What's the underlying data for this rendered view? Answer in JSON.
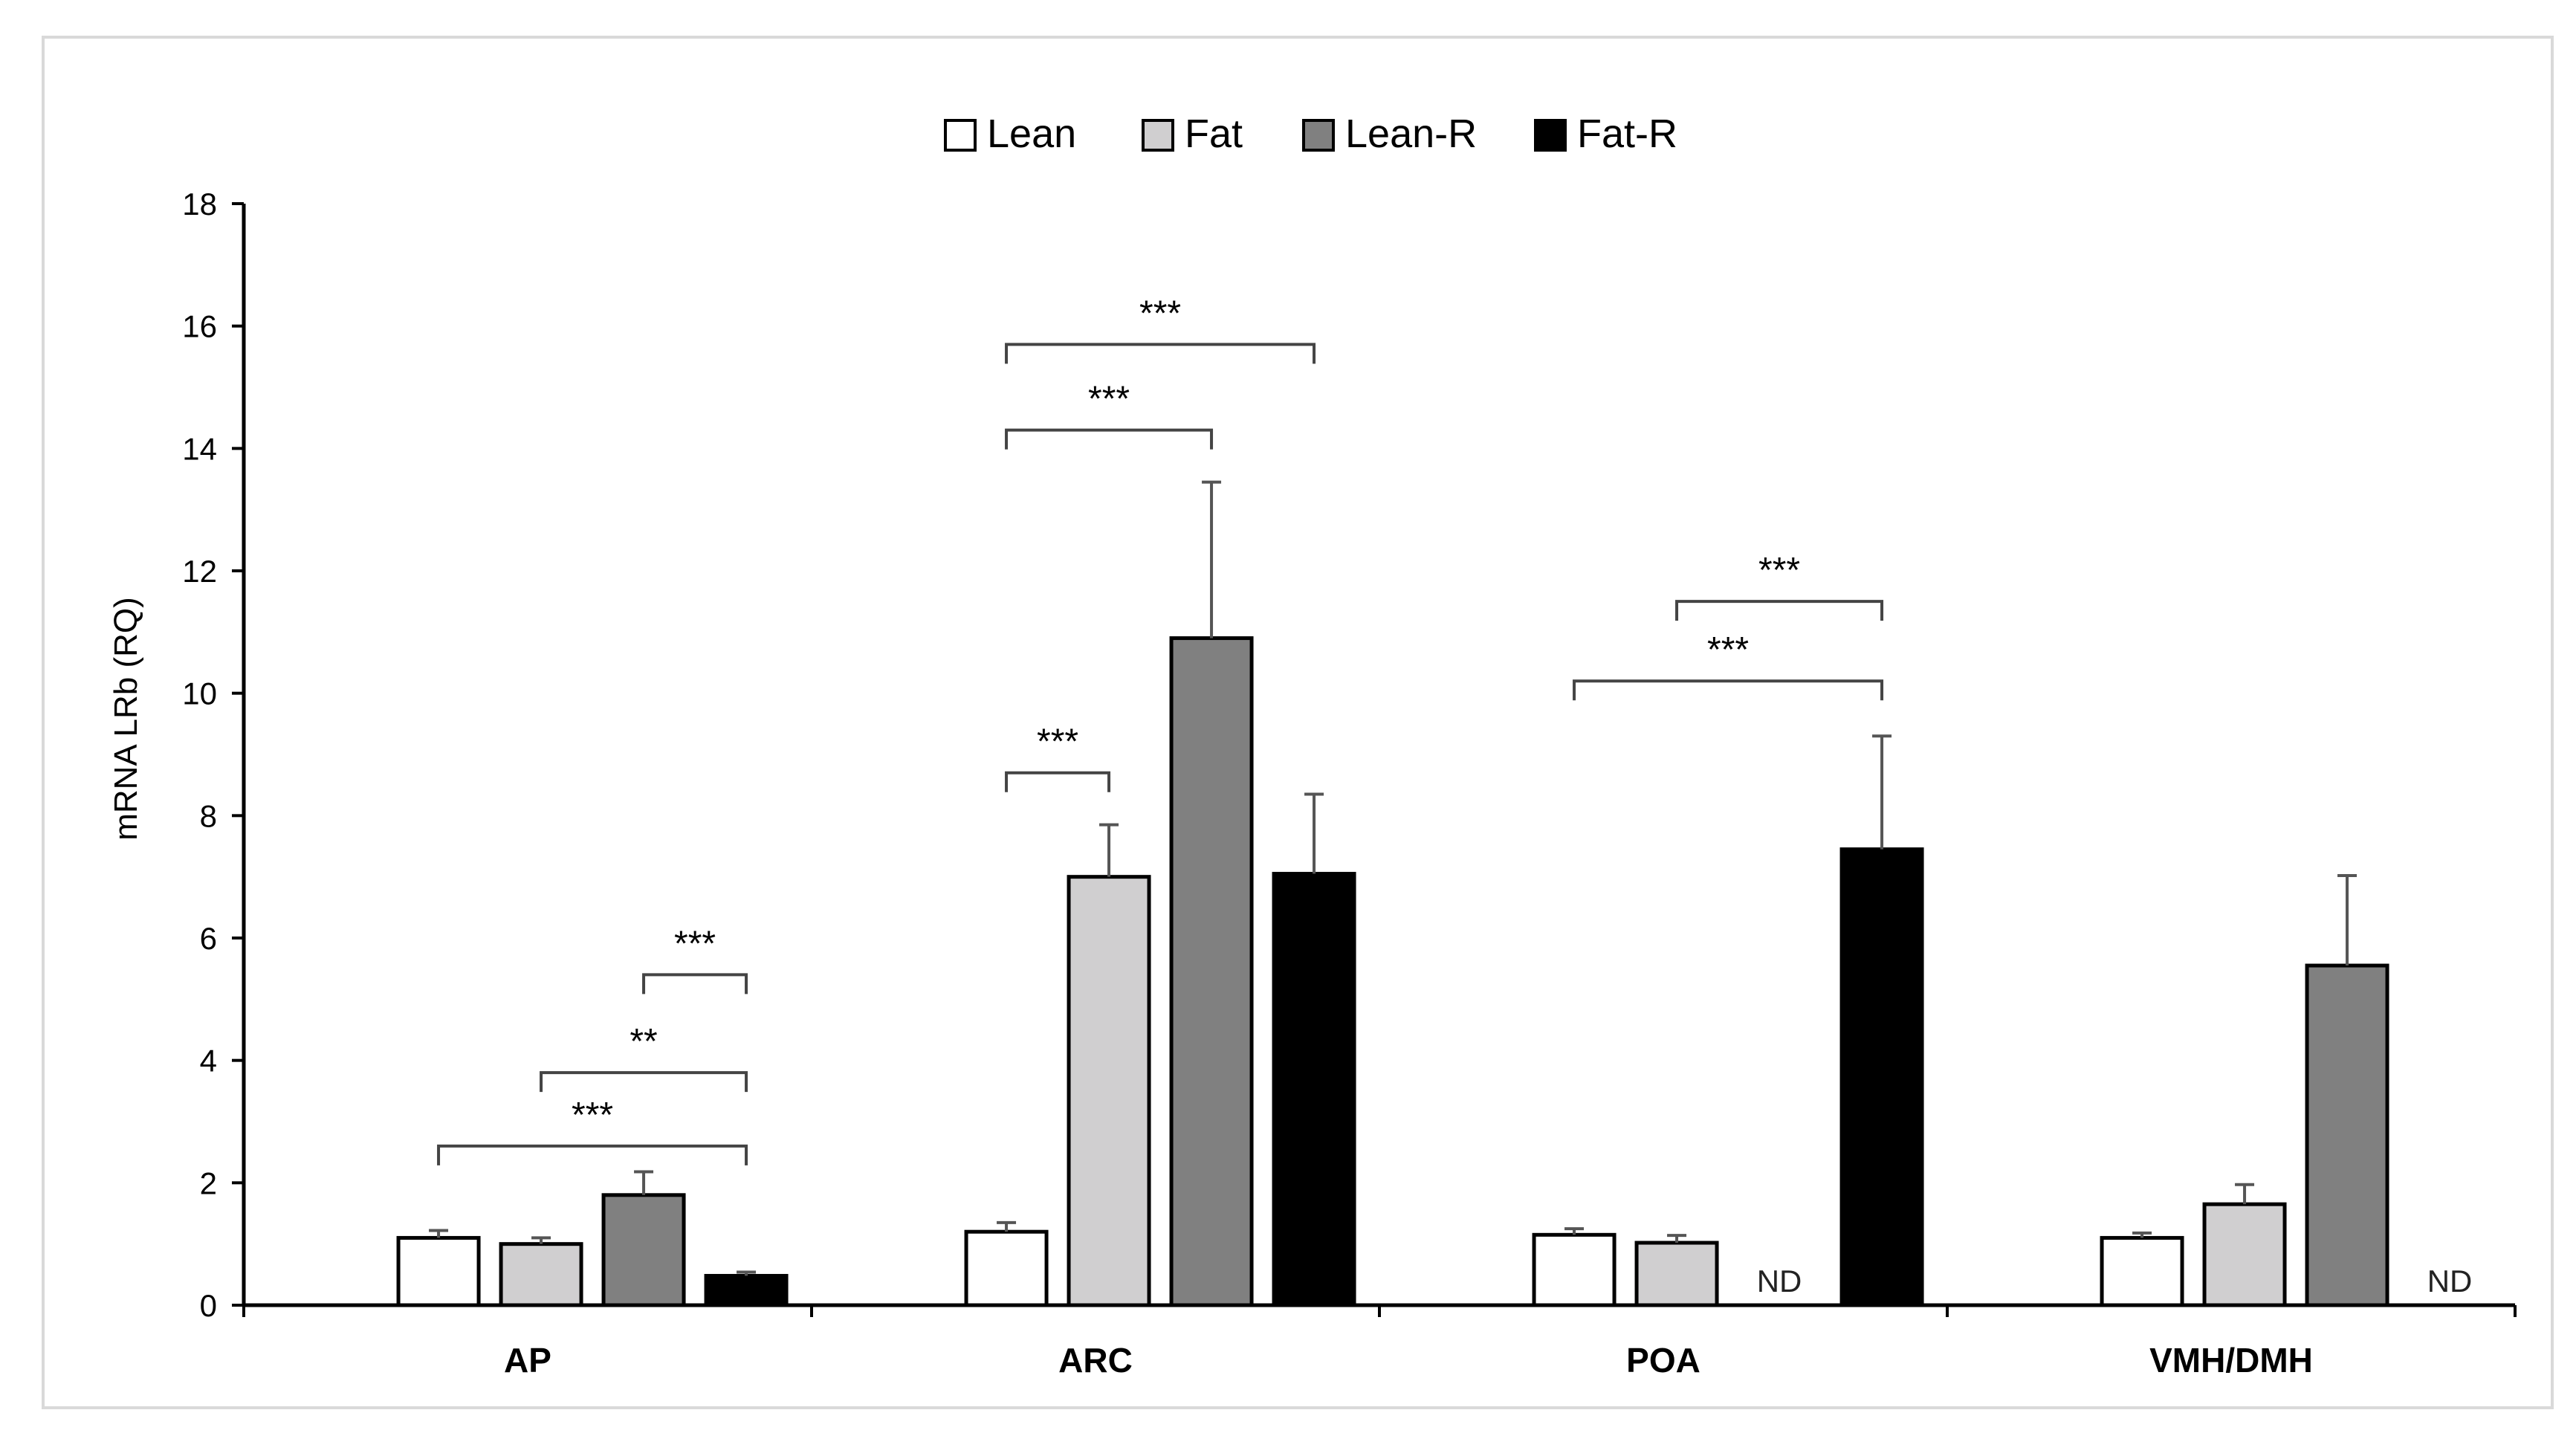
{
  "chart_data": {
    "type": "bar",
    "title": "",
    "xlabel": "",
    "ylabel": "mRNA LRb (RQ)",
    "ylim": [
      0,
      18
    ],
    "yticks": [
      "0",
      "2",
      "4",
      "6",
      "8",
      "10",
      "12",
      "14",
      "16",
      "18"
    ],
    "categories": [
      "AP",
      "ARC",
      "POA",
      "VMH/DMH"
    ],
    "legend_position": "top-center",
    "grid": false,
    "series": [
      {
        "name": "Lean",
        "color": "#ffffff",
        "values": [
          1.1,
          1.2,
          1.15,
          1.1
        ],
        "errors": [
          0.12,
          0.15,
          0.1,
          0.08
        ]
      },
      {
        "name": "Fat",
        "color": "#d0cfd0",
        "values": [
          1.0,
          7.0,
          1.02,
          1.65
        ],
        "errors": [
          0.1,
          0.85,
          0.12,
          0.32
        ]
      },
      {
        "name": "Lean-R",
        "color": "#808080",
        "values": [
          1.8,
          10.9,
          null,
          5.55
        ],
        "errors": [
          0.38,
          2.55,
          null,
          1.47
        ]
      },
      {
        "name": "Fat-R",
        "color": "#000000",
        "values": [
          0.48,
          7.05,
          7.45,
          null
        ],
        "errors": [
          0.06,
          1.3,
          1.85,
          null
        ]
      }
    ],
    "annotations": [
      {
        "category": "AP",
        "from_series": 2,
        "to_series": 3,
        "label": "***",
        "level": 5.4
      },
      {
        "category": "AP",
        "from_series": 1,
        "to_series": 3,
        "label": "**",
        "level": 3.8
      },
      {
        "category": "AP",
        "from_series": 0,
        "to_series": 3,
        "label": "***",
        "level": 2.6
      },
      {
        "category": "ARC",
        "from_series": 0,
        "to_series": 3,
        "label": "***",
        "level": 15.7
      },
      {
        "category": "ARC",
        "from_series": 0,
        "to_series": 2,
        "label": "***",
        "level": 14.3
      },
      {
        "category": "ARC",
        "from_series": 0,
        "to_series": 1,
        "label": "***",
        "level": 8.7
      },
      {
        "category": "POA",
        "from_series": 1,
        "to_series": 3,
        "label": "***",
        "level": 11.5
      },
      {
        "category": "POA",
        "from_series": 0,
        "to_series": 3,
        "label": "***",
        "level": 10.2
      }
    ],
    "nd_markers": [
      {
        "category": "POA",
        "series": 2,
        "label": "ND"
      },
      {
        "category": "VMH/DMH",
        "series": 3,
        "label": "ND"
      }
    ]
  }
}
